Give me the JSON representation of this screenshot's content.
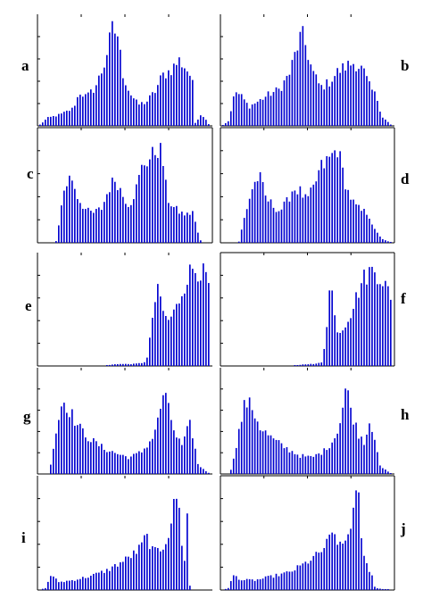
{
  "figure": {
    "bar_color": "#0000d0",
    "axis_color": "#000000",
    "background": "#ffffff"
  },
  "chart_data": [
    {
      "label": "a",
      "type": "bar",
      "grid": false,
      "box": false,
      "profile": [
        [
          0,
          0
        ],
        [
          0.05,
          0.08
        ],
        [
          0.13,
          0.12
        ],
        [
          0.2,
          0.18
        ],
        [
          0.24,
          0.35
        ],
        [
          0.28,
          0.3
        ],
        [
          0.33,
          0.4
        ],
        [
          0.38,
          0.62
        ],
        [
          0.41,
          0.85
        ],
        [
          0.43,
          1.0
        ],
        [
          0.46,
          0.96
        ],
        [
          0.49,
          0.55
        ],
        [
          0.53,
          0.35
        ],
        [
          0.58,
          0.22
        ],
        [
          0.63,
          0.25
        ],
        [
          0.68,
          0.36
        ],
        [
          0.72,
          0.52
        ],
        [
          0.77,
          0.58
        ],
        [
          0.82,
          0.68
        ],
        [
          0.85,
          0.62
        ],
        [
          0.88,
          0.55
        ],
        [
          0.9,
          0.42
        ],
        [
          0.91,
          0.02
        ],
        [
          0.95,
          0.13
        ],
        [
          1.0,
          0.0
        ]
      ]
    },
    {
      "label": "b",
      "type": "bar",
      "grid": false,
      "box": false,
      "profile": [
        [
          0,
          0
        ],
        [
          0.04,
          0.05
        ],
        [
          0.08,
          0.36
        ],
        [
          0.12,
          0.3
        ],
        [
          0.16,
          0.2
        ],
        [
          0.22,
          0.26
        ],
        [
          0.28,
          0.33
        ],
        [
          0.34,
          0.38
        ],
        [
          0.4,
          0.55
        ],
        [
          0.44,
          0.8
        ],
        [
          0.47,
          0.96
        ],
        [
          0.5,
          0.8
        ],
        [
          0.53,
          0.58
        ],
        [
          0.58,
          0.4
        ],
        [
          0.63,
          0.45
        ],
        [
          0.68,
          0.56
        ],
        [
          0.73,
          0.62
        ],
        [
          0.78,
          0.66
        ],
        [
          0.83,
          0.58
        ],
        [
          0.87,
          0.4
        ],
        [
          0.91,
          0.3
        ],
        [
          0.94,
          0.1
        ],
        [
          1.0,
          0.0
        ]
      ]
    },
    {
      "label": "c",
      "type": "bar",
      "grid": false,
      "box": true,
      "profile": [
        [
          0,
          0
        ],
        [
          0.1,
          0.0
        ],
        [
          0.15,
          0.55
        ],
        [
          0.19,
          0.68
        ],
        [
          0.23,
          0.45
        ],
        [
          0.28,
          0.32
        ],
        [
          0.32,
          0.3
        ],
        [
          0.37,
          0.35
        ],
        [
          0.41,
          0.55
        ],
        [
          0.45,
          0.65
        ],
        [
          0.49,
          0.48
        ],
        [
          0.53,
          0.38
        ],
        [
          0.57,
          0.55
        ],
        [
          0.61,
          0.8
        ],
        [
          0.66,
          0.86
        ],
        [
          0.69,
          0.96
        ],
        [
          0.72,
          0.9
        ],
        [
          0.75,
          0.45
        ],
        [
          0.79,
          0.35
        ],
        [
          0.83,
          0.3
        ],
        [
          0.87,
          0.28
        ],
        [
          0.9,
          0.32
        ],
        [
          0.92,
          0.15
        ],
        [
          0.95,
          0.0
        ],
        [
          1.0,
          0.0
        ]
      ]
    },
    {
      "label": "d",
      "type": "bar",
      "grid": false,
      "box": true,
      "profile": [
        [
          0,
          0
        ],
        [
          0.1,
          0.0
        ],
        [
          0.14,
          0.3
        ],
        [
          0.18,
          0.55
        ],
        [
          0.22,
          0.68
        ],
        [
          0.26,
          0.45
        ],
        [
          0.3,
          0.38
        ],
        [
          0.34,
          0.32
        ],
        [
          0.38,
          0.4
        ],
        [
          0.42,
          0.55
        ],
        [
          0.46,
          0.52
        ],
        [
          0.5,
          0.42
        ],
        [
          0.54,
          0.55
        ],
        [
          0.58,
          0.75
        ],
        [
          0.62,
          0.82
        ],
        [
          0.65,
          0.88
        ],
        [
          0.68,
          0.96
        ],
        [
          0.71,
          0.72
        ],
        [
          0.74,
          0.52
        ],
        [
          0.78,
          0.38
        ],
        [
          0.82,
          0.32
        ],
        [
          0.86,
          0.3
        ],
        [
          0.9,
          0.12
        ],
        [
          0.95,
          0.03
        ],
        [
          1.0,
          0.0
        ]
      ]
    },
    {
      "label": "e",
      "type": "bar",
      "grid": false,
      "box": false,
      "profile": [
        [
          0,
          0
        ],
        [
          0.38,
          0.0
        ],
        [
          0.45,
          0.02
        ],
        [
          0.55,
          0.02
        ],
        [
          0.6,
          0.03
        ],
        [
          0.63,
          0.05
        ],
        [
          0.65,
          0.28
        ],
        [
          0.67,
          0.6
        ],
        [
          0.7,
          0.78
        ],
        [
          0.72,
          0.6
        ],
        [
          0.75,
          0.45
        ],
        [
          0.78,
          0.52
        ],
        [
          0.81,
          0.62
        ],
        [
          0.84,
          0.78
        ],
        [
          0.87,
          0.92
        ],
        [
          0.9,
          1.0
        ],
        [
          0.94,
          0.98
        ],
        [
          0.97,
          0.92
        ],
        [
          1.0,
          0.8
        ]
      ]
    },
    {
      "label": "f",
      "type": "bar",
      "grid": false,
      "box": true,
      "profile": [
        [
          0,
          0
        ],
        [
          0.4,
          0.0
        ],
        [
          0.5,
          0.02
        ],
        [
          0.55,
          0.02
        ],
        [
          0.59,
          0.04
        ],
        [
          0.61,
          0.3
        ],
        [
          0.64,
          0.9
        ],
        [
          0.67,
          0.4
        ],
        [
          0.7,
          0.35
        ],
        [
          0.73,
          0.45
        ],
        [
          0.76,
          0.55
        ],
        [
          0.79,
          0.7
        ],
        [
          0.82,
          0.85
        ],
        [
          0.86,
          0.96
        ],
        [
          0.9,
          0.98
        ],
        [
          0.94,
          0.9
        ],
        [
          0.97,
          0.8
        ],
        [
          1.0,
          0.6
        ]
      ]
    },
    {
      "label": "g",
      "type": "bar",
      "grid": false,
      "box": false,
      "profile": [
        [
          0,
          0
        ],
        [
          0.06,
          0.0
        ],
        [
          0.1,
          0.45
        ],
        [
          0.14,
          0.82
        ],
        [
          0.18,
          0.7
        ],
        [
          0.23,
          0.52
        ],
        [
          0.3,
          0.38
        ],
        [
          0.38,
          0.28
        ],
        [
          0.46,
          0.22
        ],
        [
          0.53,
          0.18
        ],
        [
          0.6,
          0.24
        ],
        [
          0.66,
          0.38
        ],
        [
          0.7,
          0.6
        ],
        [
          0.73,
          0.92
        ],
        [
          0.76,
          0.68
        ],
        [
          0.8,
          0.42
        ],
        [
          0.84,
          0.3
        ],
        [
          0.88,
          0.55
        ],
        [
          0.9,
          0.42
        ],
        [
          0.93,
          0.1
        ],
        [
          1.0,
          0.0
        ]
      ]
    },
    {
      "label": "h",
      "type": "bar",
      "grid": false,
      "box": false,
      "profile": [
        [
          0,
          0
        ],
        [
          0.05,
          0.0
        ],
        [
          0.1,
          0.45
        ],
        [
          0.14,
          0.8
        ],
        [
          0.18,
          0.72
        ],
        [
          0.23,
          0.5
        ],
        [
          0.3,
          0.38
        ],
        [
          0.38,
          0.28
        ],
        [
          0.46,
          0.2
        ],
        [
          0.53,
          0.18
        ],
        [
          0.6,
          0.25
        ],
        [
          0.66,
          0.38
        ],
        [
          0.7,
          0.6
        ],
        [
          0.73,
          0.96
        ],
        [
          0.76,
          0.7
        ],
        [
          0.8,
          0.45
        ],
        [
          0.84,
          0.35
        ],
        [
          0.87,
          0.6
        ],
        [
          0.9,
          0.4
        ],
        [
          0.93,
          0.08
        ],
        [
          1.0,
          0.0
        ]
      ]
    },
    {
      "label": "i",
      "type": "bar",
      "grid": false,
      "box": false,
      "profile": [
        [
          0,
          0
        ],
        [
          0.04,
          0.02
        ],
        [
          0.07,
          0.15
        ],
        [
          0.12,
          0.08
        ],
        [
          0.2,
          0.1
        ],
        [
          0.3,
          0.14
        ],
        [
          0.4,
          0.2
        ],
        [
          0.5,
          0.3
        ],
        [
          0.58,
          0.4
        ],
        [
          0.63,
          0.55
        ],
        [
          0.67,
          0.38
        ],
        [
          0.72,
          0.42
        ],
        [
          0.76,
          0.58
        ],
        [
          0.79,
          0.85
        ],
        [
          0.81,
          1.0
        ],
        [
          0.84,
          0.4
        ],
        [
          0.86,
          0.25
        ],
        [
          0.87,
          0.95
        ],
        [
          0.88,
          0.05
        ],
        [
          0.9,
          0.0
        ],
        [
          1.0,
          0.0
        ]
      ]
    },
    {
      "label": "j",
      "type": "bar",
      "grid": false,
      "box": true,
      "profile": [
        [
          0,
          0
        ],
        [
          0.04,
          0.02
        ],
        [
          0.07,
          0.15
        ],
        [
          0.12,
          0.1
        ],
        [
          0.2,
          0.1
        ],
        [
          0.3,
          0.14
        ],
        [
          0.4,
          0.18
        ],
        [
          0.5,
          0.28
        ],
        [
          0.58,
          0.38
        ],
        [
          0.62,
          0.48
        ],
        [
          0.66,
          0.58
        ],
        [
          0.7,
          0.42
        ],
        [
          0.74,
          0.55
        ],
        [
          0.78,
          0.85
        ],
        [
          0.8,
          1.0
        ],
        [
          0.83,
          0.35
        ],
        [
          0.86,
          0.22
        ],
        [
          0.88,
          0.18
        ],
        [
          0.9,
          0.02
        ],
        [
          1.0,
          0.0
        ]
      ]
    }
  ]
}
